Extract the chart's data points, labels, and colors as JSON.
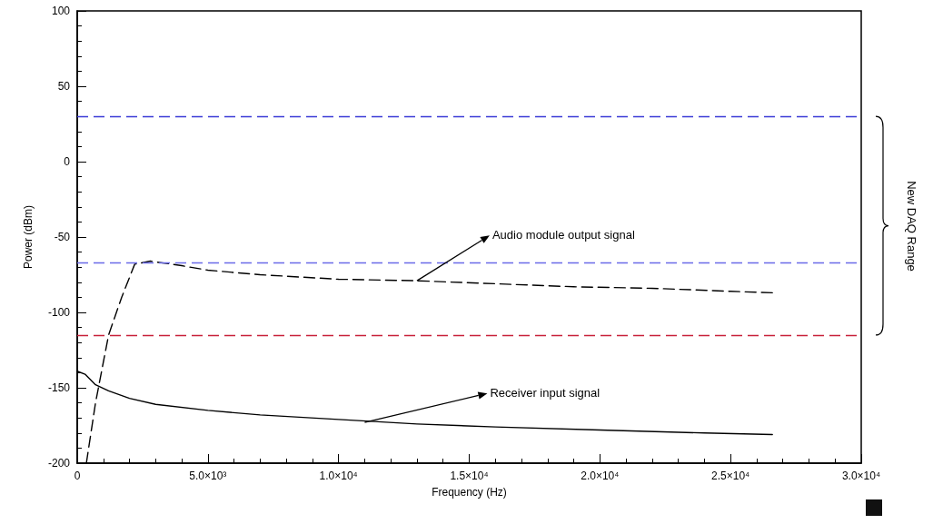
{
  "chart_data": {
    "type": "line",
    "xlabel": "Frequency (Hz)",
    "ylabel": "Power (dBm)",
    "xlim": [
      0,
      30000
    ],
    "xticks": [
      0,
      {
        "value": 5000,
        "label": "5.0×10³"
      },
      {
        "value": 10000,
        "label": "1.0×10⁴"
      },
      {
        "value": 15000,
        "label": "1.5×10⁴"
      },
      {
        "value": 20000,
        "label": "2.0×10⁴"
      },
      {
        "value": 25000,
        "label": "2.5×10⁴"
      },
      {
        "value": 30000,
        "label": "3.0×10⁴"
      }
    ],
    "ylim": [
      -200,
      100
    ],
    "yticks": [
      -200,
      -150,
      -100,
      -50,
      0,
      50,
      100
    ],
    "grid": false,
    "legend": false,
    "marker": "none",
    "series": [
      {
        "color": "#000000",
        "line_style": "solid",
        "x": [
          0,
          300,
          700,
          1200,
          2000,
          3000,
          5000,
          7000,
          10000,
          13000,
          16000,
          20000,
          24000,
          26600
        ],
        "values": [
          -139,
          -141,
          -148,
          -152,
          -157,
          -161,
          -165,
          -168,
          -171,
          -174,
          -176,
          -178,
          -180,
          -181
        ]
      },
      {
        "color": "#000000",
        "line_style": "dashed",
        "x": [
          350,
          700,
          1200,
          1700,
          2200,
          2800,
          4000,
          5000,
          7000,
          10000,
          13000,
          16000,
          19000,
          22000,
          25000,
          26600
        ],
        "values": [
          -200,
          -160,
          -115,
          -90,
          -68,
          -66,
          -69,
          -72,
          -75,
          -78,
          -79,
          -81,
          -83,
          -84,
          -86,
          -87
        ]
      }
    ],
    "ref_lines": [
      {
        "axis": "y",
        "value": 30,
        "color": "#3a3ad6",
        "line_style": "dashed"
      },
      {
        "axis": "y",
        "value": -67,
        "color": "#6a6ae8",
        "line_style": "dashed"
      },
      {
        "axis": "y",
        "value": -115,
        "color": "#c8203a",
        "line_style": "dashed"
      }
    ],
    "annotations": [
      {
        "text": "Audio module output signal",
        "x": 13000,
        "y": -79
      },
      {
        "text": "Receiver input signal",
        "x": 11000,
        "y": -173
      },
      "New DAQ Range"
    ]
  }
}
